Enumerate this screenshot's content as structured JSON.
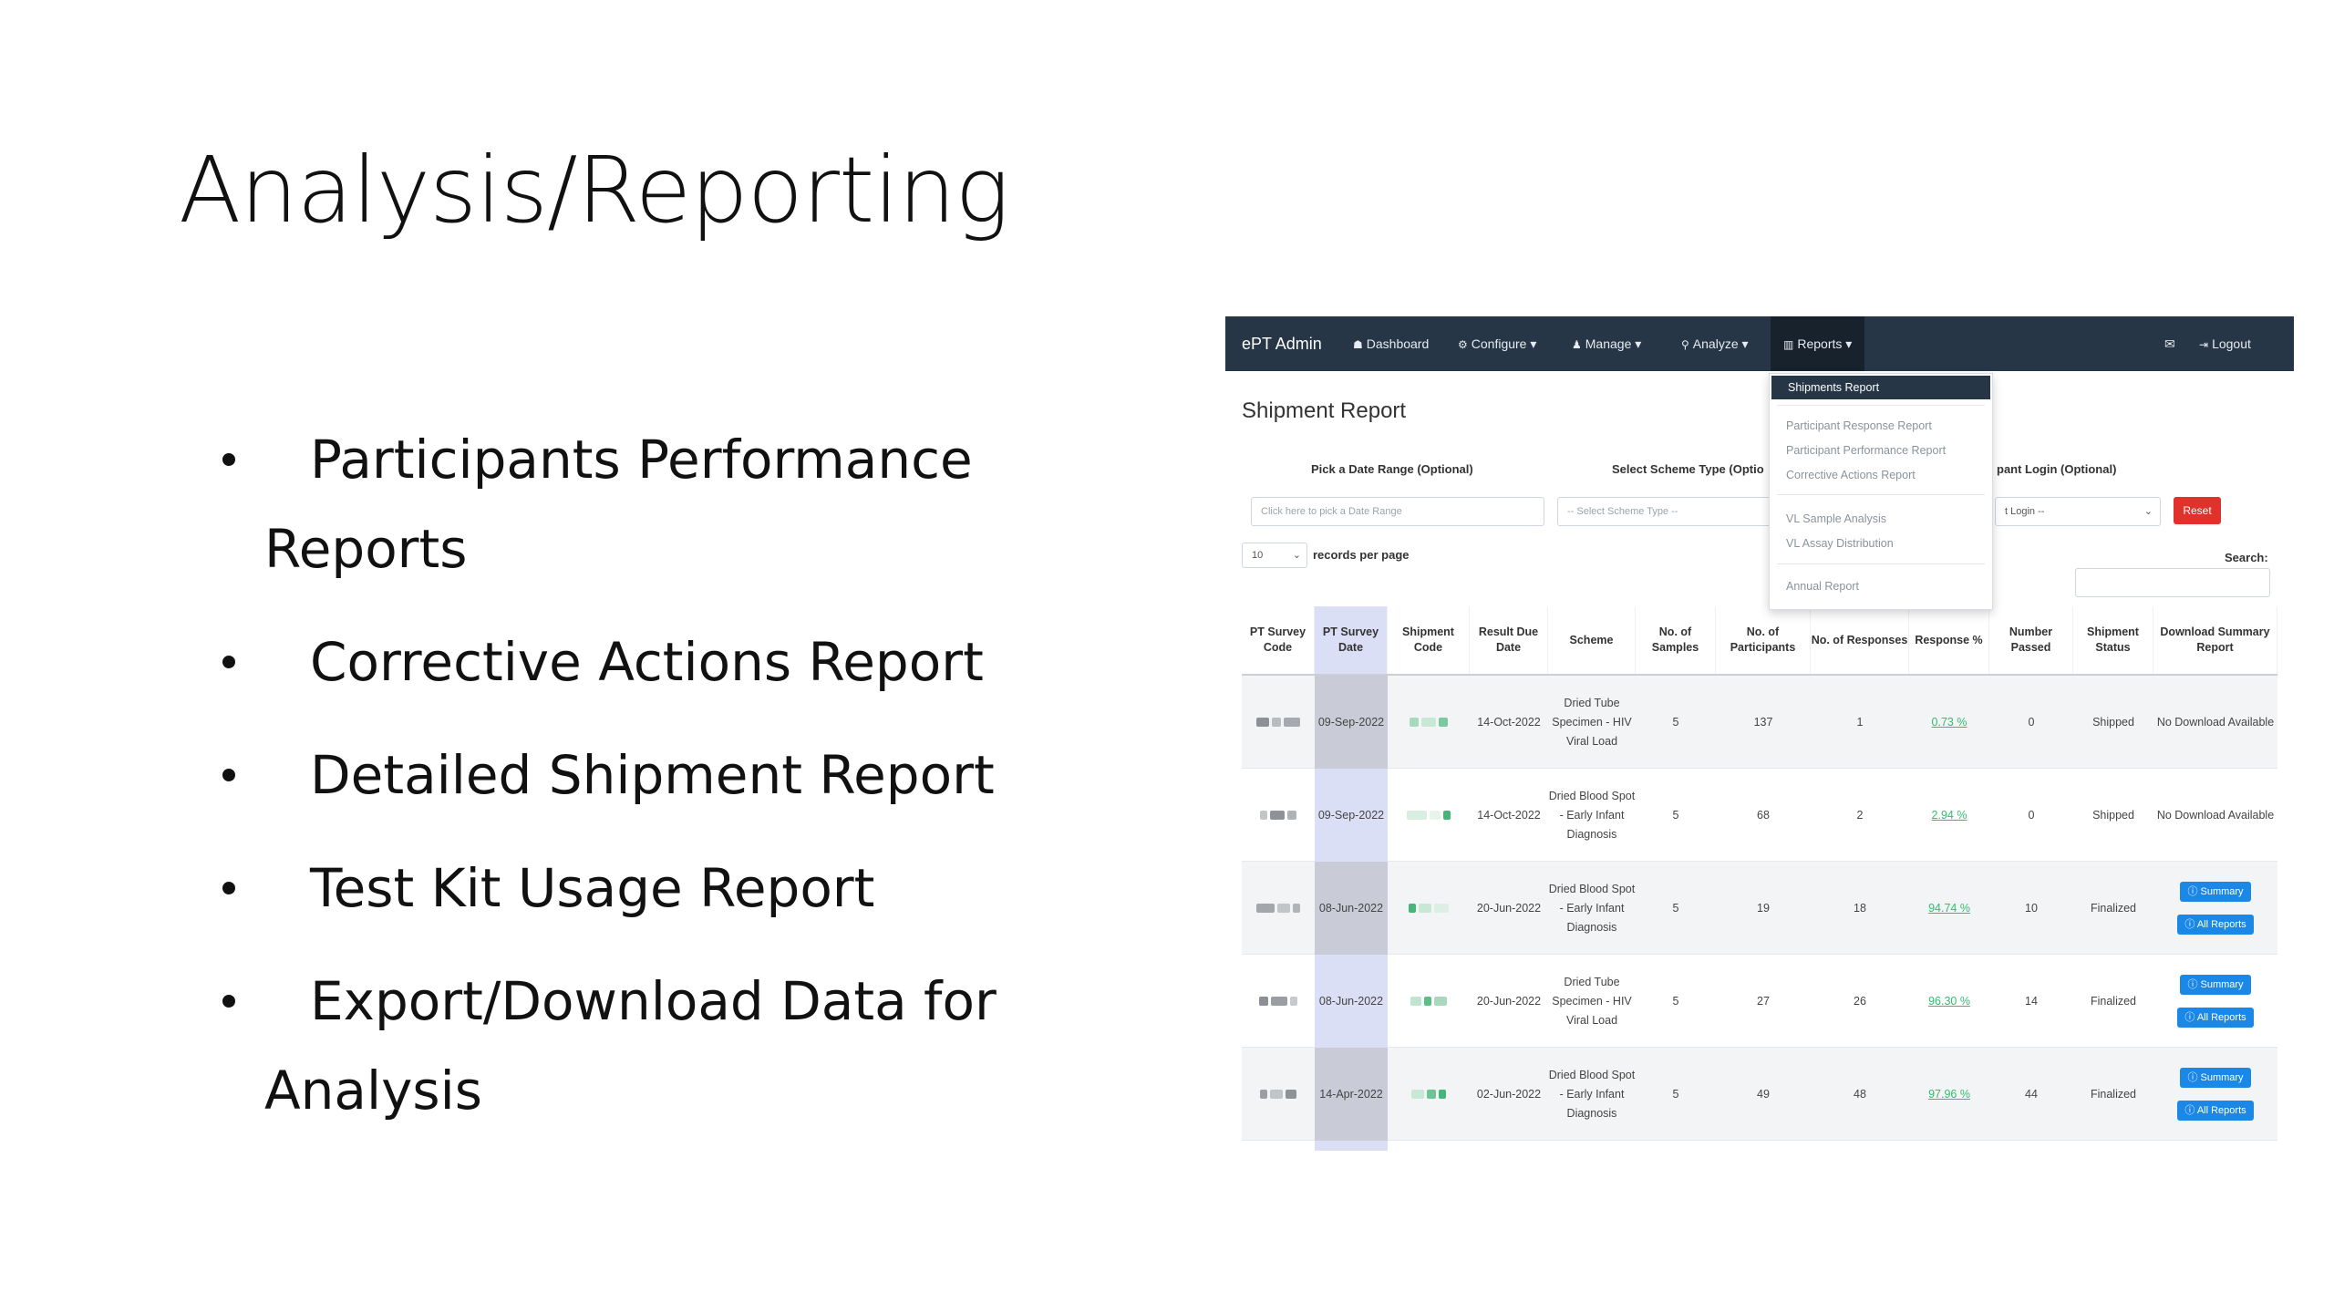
{
  "slide": {
    "title": "Analysis/Reporting",
    "bullets": [
      "Participants Performance Reports",
      "Corrective Actions Report",
      "Detailed Shipment Report",
      "Test Kit Usage Report",
      "Export/Download Data for Analysis"
    ]
  },
  "app": {
    "brand": "ePT Admin",
    "nav": {
      "dashboard": "Dashboard",
      "configure": "Configure",
      "manage": "Manage",
      "analyze": "Analyze",
      "reports": "Reports",
      "logout": "Logout"
    },
    "dropdown": {
      "items": [
        "Shipments Report",
        "Participant Response Report",
        "Participant Performance Report",
        "Corrective Actions Report",
        "VL Sample Analysis",
        "VL Assay Distribution",
        "Annual Report"
      ]
    },
    "page_title": "Shipment Report",
    "filters": {
      "date_label": "Pick a Date Range (Optional)",
      "date_placeholder": "Click here to pick a Date Range",
      "scheme_label": "Select Scheme Type (Optio",
      "scheme_placeholder": "-- Select Scheme Type --",
      "login_label": "pant Login (Optional)",
      "login_placeholder": "t Login --",
      "reset": "Reset"
    },
    "length": {
      "value": "10",
      "label": "records per page"
    },
    "search_label": "Search:",
    "table": {
      "headers": [
        "PT Survey Code",
        "PT Survey Date",
        "Shipment Code",
        "Result Due Date",
        "Scheme",
        "No. of Samples",
        "No. of Participants",
        "No. of Responses",
        "Response %",
        "Number Passed",
        "Shipment Status",
        "Download Summary Report"
      ],
      "rows": [
        {
          "survey_date": "09-Sep-2022",
          "due_date": "14-Oct-2022",
          "scheme": "Dried Tube Specimen - HIV Viral Load",
          "samples": "5",
          "participants": "137",
          "responses": "1",
          "response_pct": "0.73 %",
          "passed": "0",
          "status": "Shipped",
          "download": "No Download Available"
        },
        {
          "survey_date": "09-Sep-2022",
          "due_date": "14-Oct-2022",
          "scheme": "Dried Blood Spot - Early Infant Diagnosis",
          "samples": "5",
          "participants": "68",
          "responses": "2",
          "response_pct": "2.94 %",
          "passed": "0",
          "status": "Shipped",
          "download": "No Download Available"
        },
        {
          "survey_date": "08-Jun-2022",
          "due_date": "20-Jun-2022",
          "scheme": "Dried Blood Spot - Early Infant Diagnosis",
          "samples": "5",
          "participants": "19",
          "responses": "18",
          "response_pct": "94.74 %",
          "passed": "10",
          "status": "Finalized",
          "summary": "Summary",
          "all_reports": "All Reports"
        },
        {
          "survey_date": "08-Jun-2022",
          "due_date": "20-Jun-2022",
          "scheme": "Dried Tube Specimen - HIV Viral Load",
          "samples": "5",
          "participants": "27",
          "responses": "26",
          "response_pct": "96.30 %",
          "passed": "14",
          "status": "Finalized",
          "summary": "Summary",
          "all_reports": "All Reports"
        },
        {
          "survey_date": "14-Apr-2022",
          "due_date": "02-Jun-2022",
          "scheme": "Dried Blood Spot - Early Infant Diagnosis",
          "samples": "5",
          "participants": "49",
          "responses": "48",
          "response_pct": "97.96 %",
          "passed": "44",
          "status": "Finalized",
          "summary": "Summary",
          "all_reports": "All Reports"
        }
      ]
    }
  }
}
